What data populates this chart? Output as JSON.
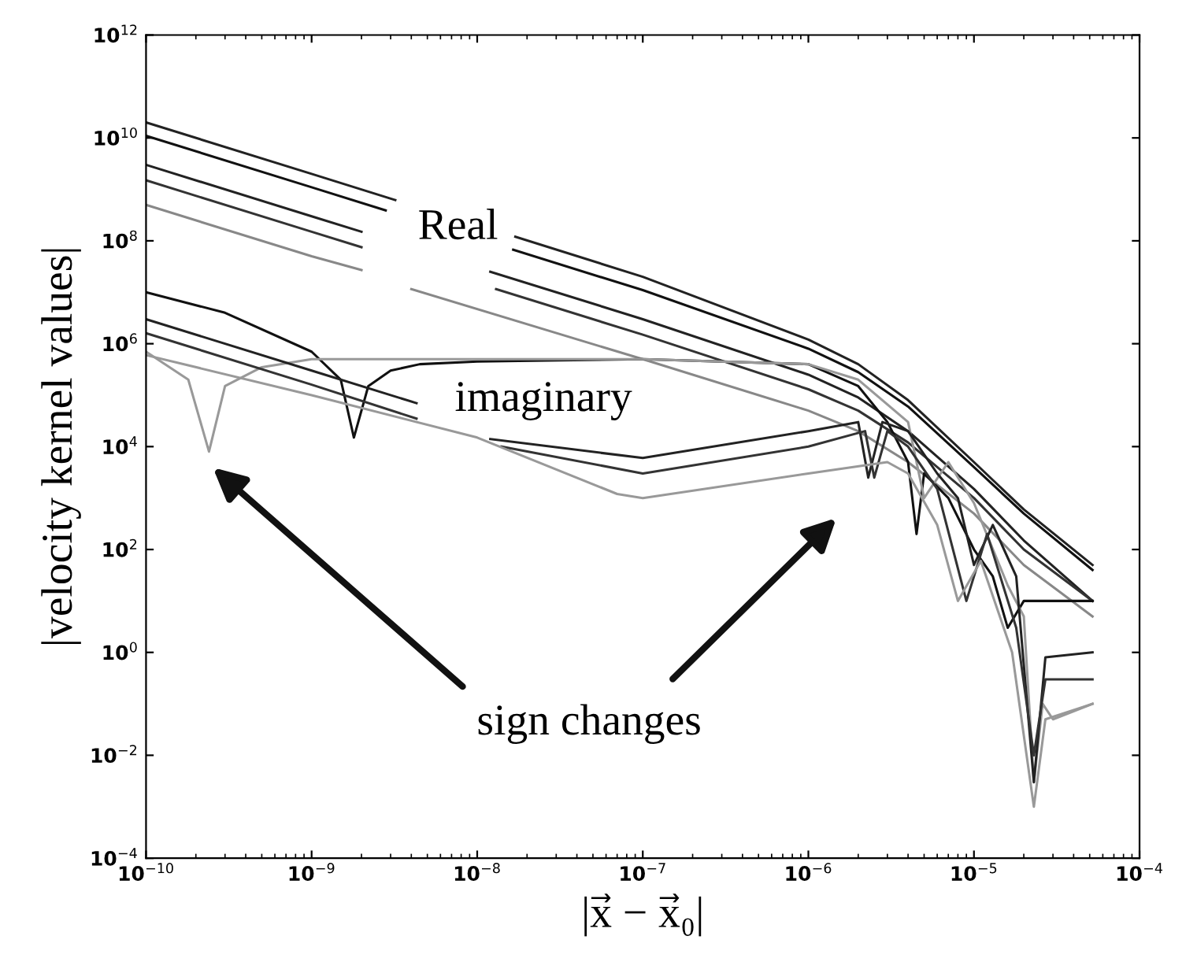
{
  "chart_data": {
    "type": "line",
    "xlabel": "|x⃗ − x⃗₀|",
    "ylabel": "|velocity kernel values|",
    "log": "xy",
    "grid": false,
    "legend": false,
    "marker": "none",
    "line_style": "solid",
    "xlim": [
      1e-10,
      0.0001
    ],
    "ylim": [
      0.0001,
      1000000000000.0
    ],
    "xticks": [
      {
        "value": 1e-10,
        "label": "10$^{−10}$"
      },
      {
        "value": 1e-09,
        "label": "10$^{−9}$"
      },
      {
        "value": 1e-08,
        "label": "10$^{−8}$"
      },
      {
        "value": 1e-07,
        "label": "10$^{−7}$"
      },
      {
        "value": 1e-06,
        "label": "10$^{−6}$"
      },
      {
        "value": 1e-05,
        "label": "10$^{−5}$"
      },
      {
        "value": 0.0001,
        "label": "10$^{−4}$"
      }
    ],
    "yticks": [
      {
        "value": 0.0001,
        "label": "10$^{−4}$"
      },
      {
        "value": 0.01,
        "label": "10$^{−2}$"
      },
      {
        "value": 1,
        "label": "10$^{0}$"
      },
      {
        "value": 100,
        "label": "10$^{2}$"
      },
      {
        "value": 10000.0,
        "label": "10$^{4}$"
      },
      {
        "value": 1000000.0,
        "label": "10$^{6}$"
      },
      {
        "value": 100000000.0,
        "label": "10$^{8}$"
      },
      {
        "value": 10000000000.0,
        "label": "10$^{10}$"
      },
      {
        "value": 1000000000000.0,
        "label": "10$^{12}$"
      }
    ],
    "annotations": [
      "Real",
      "imaginary",
      "sign changes"
    ],
    "series": [
      {
        "color": "#222222",
        "x": [
          1e-10,
          1e-09,
          3.2e-09,
          8e-09,
          1.7e-08,
          1e-07,
          1e-06,
          2e-06,
          4e-06,
          1e-05,
          2e-05,
          5.2e-05
        ],
        "values": [
          20000000000.0,
          2000000000.0,
          620000000.0,
          null,
          120000000.0,
          20000000.0,
          1200000.0,
          400000.0,
          80000.0,
          5000.0,
          600,
          50
        ]
      },
      {
        "color": "#111111",
        "x": [
          1e-10,
          1e-09,
          2.8e-09,
          8e-09,
          1.65e-08,
          1e-07,
          1e-06,
          2e-06,
          4e-06,
          1e-05,
          2e-05,
          5.2e-05
        ],
        "values": [
          11000000000.0,
          1100000000.0,
          390000000.0,
          null,
          67000000.0,
          11000000.0,
          800000.0,
          280000.0,
          60000.0,
          4000.0,
          500,
          40
        ]
      },
      {
        "color": "#222222",
        "x": [
          1e-10,
          1e-09,
          2e-09,
          6e-09,
          1.2e-08,
          1e-07,
          1e-06,
          2e-06,
          4e-06,
          1e-05,
          2e-05,
          5.2e-05
        ],
        "values": [
          3000000000.0,
          300000000.0,
          150000000.0,
          null,
          25000000.0,
          3000000.0,
          250000.0,
          90000.0,
          20000.0,
          1500,
          150,
          10
        ]
      },
      {
        "color": "#333333",
        "x": [
          1e-10,
          1e-09,
          2e-09,
          6e-09,
          1.3e-08,
          1e-07,
          1e-06,
          2e-06,
          4e-06,
          1e-05,
          2e-05,
          5.2e-05
        ],
        "values": [
          1500000000.0,
          150000000.0,
          75000000.0,
          null,
          11500000.0,
          1500000.0,
          130000.0,
          50000.0,
          12000.0,
          1000,
          100,
          10
        ]
      },
      {
        "color": "#888888",
        "x": [
          1e-10,
          1e-09,
          2e-09,
          3e-09,
          4e-09,
          1e-07,
          1e-06,
          2e-06,
          4e-06,
          1e-05,
          2e-05,
          5.2e-05
        ],
        "values": [
          500000000.0,
          50000000.0,
          27000000.0,
          null,
          11500000.0,
          500000.0,
          50000.0,
          20000.0,
          5000.0,
          500,
          50,
          5
        ]
      },
      {
        "color": "#111111",
        "x": [
          1e-10,
          3e-10,
          1e-09,
          1.5e-09,
          1.8e-09,
          2.2e-09,
          3e-09,
          4.5e-09,
          1e-08,
          1e-07,
          1e-06,
          2e-06,
          3e-06,
          4e-06,
          4.5e-06,
          5e-06,
          7e-06,
          1e-05,
          1.3e-05,
          1.6e-05,
          2e-05,
          5.2e-05
        ],
        "values": [
          10000000.0,
          4000000.0,
          700000.0,
          200000.0,
          15000.0,
          150000.0,
          300000.0,
          400000.0,
          450000.0,
          500000.0,
          400000.0,
          150000.0,
          30000.0,
          5000.0,
          200,
          3000,
          1000,
          100,
          30,
          3,
          10,
          10
        ]
      },
      {
        "color": "#999999",
        "x": [
          1e-10,
          1.8e-10,
          2.4e-10,
          3e-10,
          5e-10,
          1e-09,
          1e-08,
          1e-07,
          1e-06,
          2e-06,
          4e-06,
          5e-06,
          7e-06,
          1e-05,
          1.6e-05,
          2e-05,
          2.3e-05,
          2.6e-05,
          3e-05,
          5.2e-05
        ],
        "values": [
          700000.0,
          200000.0,
          8000.0,
          150000.0,
          350000.0,
          500000.0,
          500000.0,
          500000.0,
          400000.0,
          200000.0,
          30000.0,
          1000,
          5000,
          800,
          20,
          5,
          0.003,
          0.1,
          0.05,
          0.1
        ]
      },
      {
        "color": "#222222",
        "x": [
          1e-10,
          1e-09,
          4.3e-09,
          8e-09,
          1.2e-08,
          1e-07,
          1e-06,
          2e-06,
          2.3e-06,
          2.8e-06,
          4e-06,
          6e-06,
          8e-06,
          1e-05,
          1.3e-05,
          1.8e-05,
          2.3e-05,
          2.7e-05,
          5.2e-05
        ],
        "values": [
          3000000.0,
          300000.0,
          70000.0,
          null,
          14000.0,
          6000.0,
          20000.0,
          30000.0,
          2500,
          30000.0,
          20000.0,
          3000.0,
          1000.0,
          50,
          300,
          30,
          0.003,
          0.8,
          1
        ]
      },
      {
        "color": "#333333",
        "x": [
          1e-10,
          1e-09,
          4.3e-09,
          8e-09,
          1.4e-08,
          1e-07,
          1e-06,
          2.2e-06,
          2.5e-06,
          3e-06,
          4e-06,
          6e-06,
          9e-06,
          1.2e-05,
          1.8e-05,
          2.3e-05,
          2.7e-05,
          5.2e-05
        ],
        "values": [
          1600000.0,
          160000.0,
          35000.0,
          null,
          10000.0,
          3000.0,
          10000.0,
          20000.0,
          2500,
          20000.0,
          10000.0,
          1500,
          10,
          200,
          3,
          0.01,
          0.3,
          0.3
        ]
      },
      {
        "color": "#999999",
        "x": [
          1e-10,
          1e-09,
          1e-08,
          7e-08,
          1e-07,
          1e-06,
          3e-06,
          4e-06,
          6e-06,
          8e-06,
          1.1e-05,
          1.7e-05,
          2.3e-05,
          2.7e-05,
          5.2e-05
        ],
        "values": [
          600000.0,
          100000.0,
          15000.0,
          1200.0,
          1000.0,
          3000.0,
          5000.0,
          3000.0,
          300,
          10,
          60,
          1,
          0.001,
          0.05,
          0.1
        ]
      }
    ]
  }
}
